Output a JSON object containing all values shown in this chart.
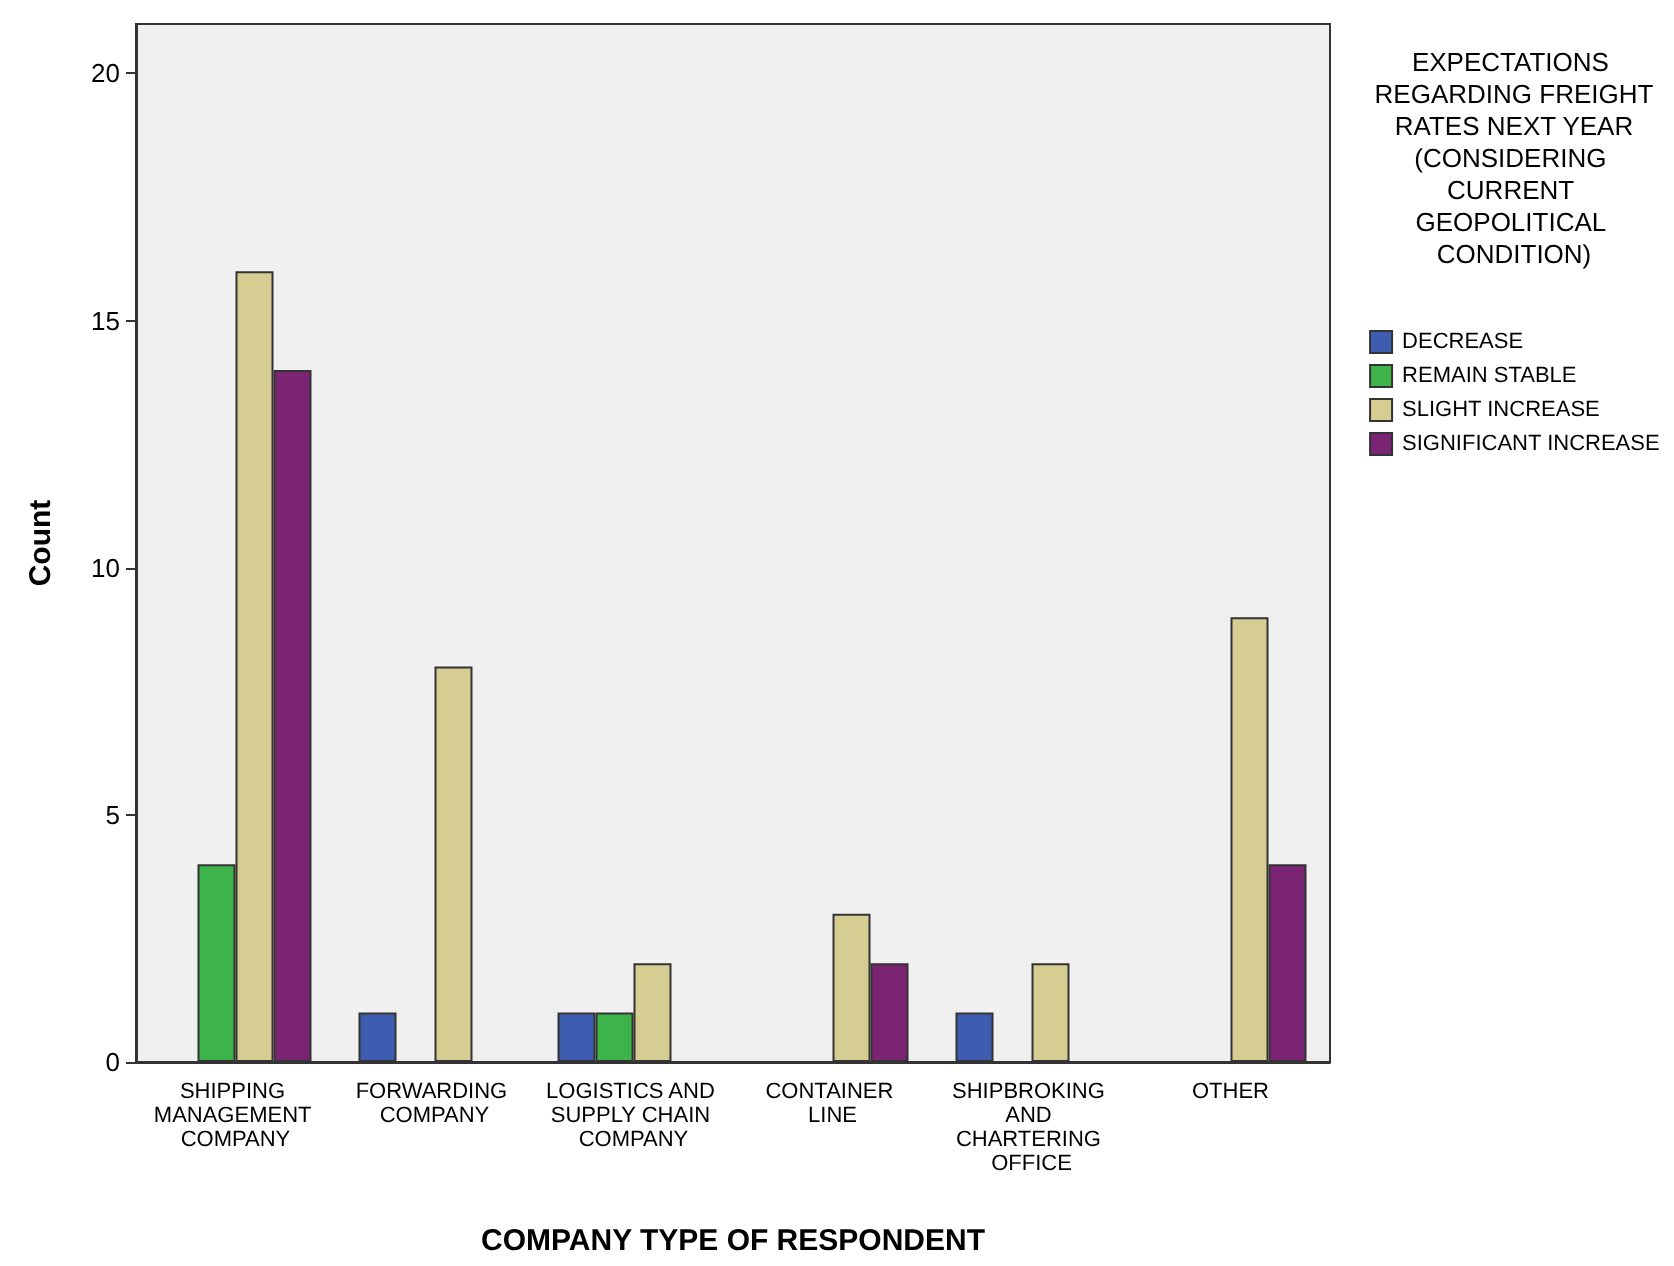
{
  "chart_data": {
    "type": "bar",
    "xlabel": "COMPANY TYPE OF RESPONDENT",
    "ylabel": "Count",
    "legend_title": "EXPECTATIONS REGARDING FREIGHT RATES NEXT YEAR (CONSIDERING CURRENT GEOPOLITICAL CONDITION)",
    "categories": [
      "SHIPPING MANAGEMENT COMPANY",
      "FORWARDING COMPANY",
      "LOGISTICS AND SUPPLY CHAIN COMPANY",
      "CONTAINER LINE",
      "SHIPBROKING AND CHARTERING OFFICE",
      "OTHER"
    ],
    "series": [
      {
        "name": "DECREASE",
        "color": "#3e5db0",
        "values": [
          0,
          1,
          1,
          0,
          1,
          0
        ]
      },
      {
        "name": "REMAIN STABLE",
        "color": "#3cb44a",
        "values": [
          4,
          0,
          1,
          0,
          0,
          0
        ]
      },
      {
        "name": "SLIGHT INCREASE",
        "color": "#d6cd93",
        "values": [
          16,
          8,
          2,
          3,
          2,
          9
        ]
      },
      {
        "name": "SIGNIFICANT INCREASE",
        "color": "#7c2474",
        "values": [
          14,
          0,
          0,
          2,
          0,
          4
        ]
      }
    ],
    "ylim": [
      0,
      21
    ],
    "yticks": [
      0,
      5,
      10,
      15,
      20
    ],
    "grid": false,
    "legend": "right"
  }
}
